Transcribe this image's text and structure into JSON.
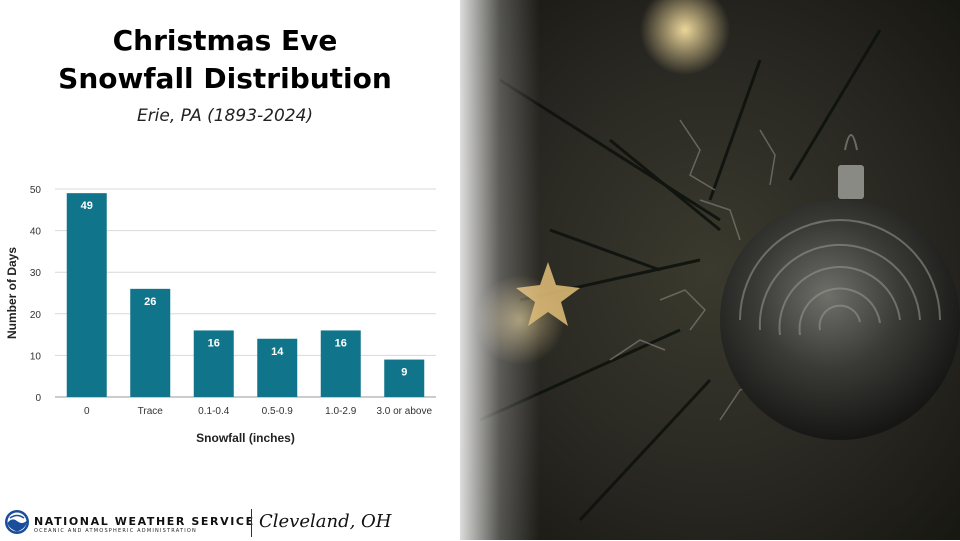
{
  "title_line1": "Christmas Eve",
  "title_line2": "Snowfall Distribution",
  "subtitle": "Erie, PA (1893-2024)",
  "footer": {
    "agency": "NATIONAL WEATHER SERVICE",
    "agency_sub": "OCEANIC AND ATMOSPHERIC ADMINISTRATION",
    "office": "Cleveland, OH"
  },
  "colors": {
    "bar": "#10758a",
    "grid": "#d9d9d9"
  },
  "chart_data": {
    "type": "bar",
    "categories": [
      "0",
      "Trace",
      "0.1-0.4",
      "0.5-0.9",
      "1.0-2.9",
      "3.0 or above"
    ],
    "values": [
      49,
      26,
      16,
      14,
      16,
      9
    ],
    "xlabel": "Snowfall (inches)",
    "ylabel": "Number of Days",
    "ylim": [
      0,
      50
    ],
    "yticks": [
      0,
      10,
      20,
      30,
      40,
      50
    ],
    "grid": true,
    "data_labels": true
  }
}
